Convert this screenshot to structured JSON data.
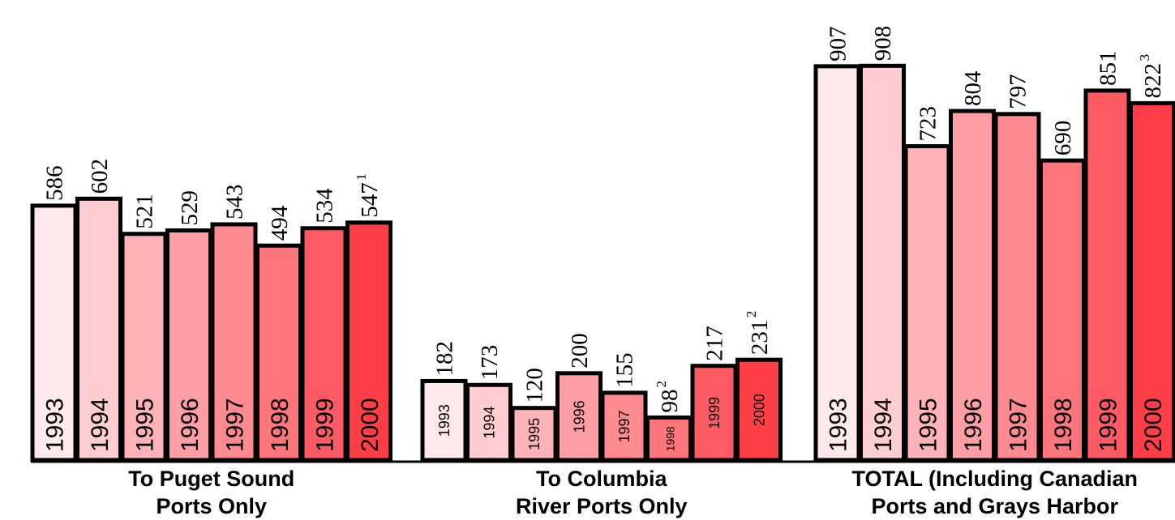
{
  "chart_data": [
    {
      "type": "bar",
      "label_lines": [
        "To Puget Sound",
        "Ports Only"
      ],
      "categories": [
        "1993",
        "1994",
        "1995",
        "1996",
        "1997",
        "1998",
        "1999",
        "2000"
      ],
      "values": [
        586,
        602,
        521,
        529,
        543,
        494,
        534,
        547
      ],
      "value_notes": [
        "",
        "",
        "",
        "",
        "",
        "",
        "",
        "1"
      ]
    },
    {
      "type": "bar",
      "label_lines": [
        "To Columbia",
        "River Ports Only"
      ],
      "categories": [
        "1993",
        "1994",
        "1995",
        "1996",
        "1997",
        "1998",
        "1999",
        "2000"
      ],
      "values": [
        182,
        173,
        120,
        200,
        155,
        98,
        217,
        231
      ],
      "value_notes": [
        "",
        "",
        "",
        "",
        "",
        "2",
        "",
        "2"
      ]
    },
    {
      "type": "bar",
      "label_lines": [
        "TOTAL (Including Canadian",
        "Ports and Grays Harbor"
      ],
      "categories": [
        "1993",
        "1994",
        "1995",
        "1996",
        "1997",
        "1998",
        "1999",
        "2000"
      ],
      "values": [
        907,
        908,
        723,
        804,
        797,
        690,
        851,
        822
      ],
      "value_notes": [
        "",
        "",
        "",
        "",
        "",
        "",
        "",
        "3"
      ]
    }
  ],
  "colors": [
    "#ffe9eb",
    "#ffcdd2",
    "#ffb3b8",
    "#ff9fa5",
    "#ff8a90",
    "#ff757c",
    "#ff5b64",
    "#ff3e48"
  ],
  "stroke_color": "#000000"
}
